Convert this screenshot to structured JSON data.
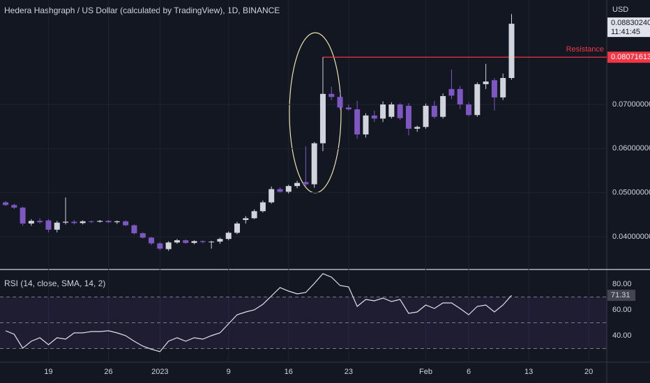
{
  "chart_data": [
    {
      "type": "candlestick",
      "title": "Hedera Hashgraph / US Dollar (calculated by TradingView), 1D, BINANCE",
      "y_axis_title": "USD",
      "x": [
        0,
        1,
        2,
        3,
        4,
        5,
        6,
        7,
        8,
        9,
        10,
        11,
        12,
        13,
        14,
        15,
        16,
        17,
        18,
        19,
        20,
        21,
        22,
        23,
        24,
        25,
        26,
        27,
        28,
        29,
        30,
        31,
        32,
        33,
        34,
        35,
        36,
        37,
        38,
        39,
        40,
        41,
        42,
        43,
        44,
        45,
        46,
        47,
        48,
        49,
        50,
        51,
        52,
        53,
        54,
        55,
        56,
        57,
        58,
        59
      ],
      "open": [
        0.0478,
        0.0472,
        0.0466,
        0.043,
        0.0436,
        0.0437,
        0.0416,
        0.0432,
        0.0434,
        0.0431,
        0.0435,
        0.0434,
        0.0436,
        0.0433,
        0.0435,
        0.0426,
        0.0408,
        0.0398,
        0.0385,
        0.0372,
        0.0387,
        0.0392,
        0.0386,
        0.039,
        0.0388,
        0.0389,
        0.0395,
        0.0409,
        0.0438,
        0.0442,
        0.0458,
        0.0478,
        0.0508,
        0.0502,
        0.0515,
        0.0524,
        0.0519,
        0.0612,
        0.0724,
        0.0717,
        0.0693,
        0.0689,
        0.0632,
        0.0675,
        0.0668,
        0.0672,
        0.07,
        0.0697,
        0.0645,
        0.0649,
        0.0697,
        0.0672,
        0.0735,
        0.0735,
        0.07,
        0.0676,
        0.0746,
        0.0755,
        0.0716,
        0.076
      ],
      "high": [
        0.0481,
        0.0475,
        0.0468,
        0.044,
        0.0442,
        0.044,
        0.0436,
        0.0489,
        0.0438,
        0.0437,
        0.0437,
        0.0438,
        0.0438,
        0.0437,
        0.0437,
        0.0428,
        0.041,
        0.04,
        0.0388,
        0.039,
        0.0395,
        0.0394,
        0.0392,
        0.0392,
        0.0391,
        0.0398,
        0.0412,
        0.0434,
        0.0447,
        0.0462,
        0.0482,
        0.0514,
        0.0512,
        0.0518,
        0.0527,
        0.0605,
        0.0615,
        0.08071613,
        0.074,
        0.0727,
        0.07,
        0.0708,
        0.068,
        0.0686,
        0.0707,
        0.0705,
        0.0703,
        0.0703,
        0.0652,
        0.0702,
        0.0708,
        0.0725,
        0.0779,
        0.0742,
        0.0705,
        0.075,
        0.0792,
        0.076,
        0.077,
        0.0905
      ],
      "low": [
        0.047,
        0.0463,
        0.0425,
        0.0425,
        0.043,
        0.041,
        0.041,
        0.0428,
        0.0428,
        0.0428,
        0.0431,
        0.0432,
        0.0431,
        0.0429,
        0.0424,
        0.0405,
        0.0396,
        0.0381,
        0.0369,
        0.0368,
        0.0384,
        0.0384,
        0.0383,
        0.0385,
        0.0373,
        0.0384,
        0.0392,
        0.0406,
        0.043,
        0.044,
        0.0455,
        0.0475,
        0.05,
        0.0498,
        0.051,
        0.0515,
        0.0511,
        0.0594,
        0.071,
        0.0688,
        0.0686,
        0.0622,
        0.0625,
        0.066,
        0.066,
        0.0668,
        0.0665,
        0.063,
        0.0638,
        0.0645,
        0.0668,
        0.0668,
        0.0712,
        0.069,
        0.0673,
        0.0672,
        0.0735,
        0.0686,
        0.071,
        0.0756
      ],
      "close": [
        0.0472,
        0.0466,
        0.043,
        0.0436,
        0.0433,
        0.0416,
        0.0432,
        0.0434,
        0.0431,
        0.0435,
        0.0434,
        0.0436,
        0.0433,
        0.0435,
        0.0426,
        0.0408,
        0.0398,
        0.0385,
        0.0373,
        0.0387,
        0.0392,
        0.0386,
        0.039,
        0.0388,
        0.0389,
        0.0395,
        0.0409,
        0.043,
        0.0442,
        0.0458,
        0.0478,
        0.0508,
        0.0502,
        0.0515,
        0.0522,
        0.0519,
        0.0612,
        0.0724,
        0.0717,
        0.0693,
        0.0689,
        0.0632,
        0.0675,
        0.0668,
        0.07,
        0.07,
        0.0669,
        0.0645,
        0.0649,
        0.0697,
        0.0672,
        0.0719,
        0.072,
        0.07,
        0.0676,
        0.0746,
        0.0752,
        0.0716,
        0.076,
        0.0883024
      ],
      "up_color": "#d1d4dc",
      "down_color": "#7e57c2",
      "xlim": [
        -0.65,
        70.1
      ],
      "xticks": [
        {
          "value": 5,
          "label": "19"
        },
        {
          "value": 12,
          "label": "26"
        },
        {
          "value": 18,
          "label": "2023"
        },
        {
          "value": 26,
          "label": "9"
        },
        {
          "value": 33,
          "label": "16"
        },
        {
          "value": 40,
          "label": "23"
        },
        {
          "value": 49,
          "label": "Feb"
        },
        {
          "value": 54,
          "label": "6"
        },
        {
          "value": 61,
          "label": "13"
        },
        {
          "value": 68,
          "label": "20"
        }
      ],
      "ylim": [
        0.03289,
        0.09369
      ],
      "yticks": [
        {
          "value": 0.04,
          "label": "0.04000000"
        },
        {
          "value": 0.05,
          "label": "0.05000000"
        },
        {
          "value": 0.06,
          "label": "0.06000000"
        },
        {
          "value": 0.07,
          "label": "0.07000000"
        }
      ],
      "grid": true,
      "last_price": {
        "value": 0.0883024,
        "label": "0.08830240",
        "countdown": "11:41:45"
      },
      "resistance": {
        "name": "Resistance",
        "value": 0.08071613,
        "label": "0.08071613",
        "color": "#f23645"
      }
    },
    {
      "type": "line",
      "title": "RSI (14, close, SMA, 14, 2)",
      "x": [
        0,
        1,
        2,
        3,
        4,
        5,
        6,
        7,
        8,
        9,
        10,
        11,
        12,
        13,
        14,
        15,
        16,
        17,
        18,
        19,
        20,
        21,
        22,
        23,
        24,
        25,
        26,
        27,
        28,
        29,
        30,
        31,
        32,
        33,
        34,
        35,
        36,
        37,
        38,
        39,
        40,
        41,
        42,
        43,
        44,
        45,
        46,
        47,
        48,
        49,
        50,
        51,
        52,
        53,
        54,
        55,
        56,
        57,
        58,
        59
      ],
      "values": [
        43.8,
        41.1,
        30.3,
        35.7,
        38.4,
        33.0,
        38.4,
        37.3,
        42.2,
        42.2,
        43.2,
        43.2,
        43.8,
        42.2,
        40.0,
        35.7,
        31.9,
        29.5,
        27.6,
        35.7,
        38.4,
        35.7,
        38.4,
        37.3,
        40.0,
        42.2,
        49.2,
        56.2,
        58.4,
        60.0,
        64.3,
        70.8,
        77.3,
        74.6,
        72.4,
        73.5,
        80.5,
        88.1,
        85.4,
        78.9,
        77.8,
        62.7,
        68.1,
        67.0,
        69.2,
        66.5,
        68.1,
        57.3,
        58.4,
        63.8,
        61.1,
        65.4,
        65.4,
        61.1,
        56.2,
        62.7,
        63.8,
        58.4,
        63.8,
        71.31
      ],
      "color": "#e0e3eb",
      "xlim": [
        -0.65,
        70.1
      ],
      "ylim": [
        19.5,
        89.7
      ],
      "yticks": [
        {
          "value": 40,
          "label": "40.00"
        },
        {
          "value": 60,
          "label": "60.00"
        },
        {
          "value": 80,
          "label": "80.00"
        }
      ],
      "bands": [
        30,
        50,
        70
      ],
      "band_color": "#7e57c2",
      "last_value": {
        "value": 71.31,
        "label": "71.31"
      }
    }
  ]
}
